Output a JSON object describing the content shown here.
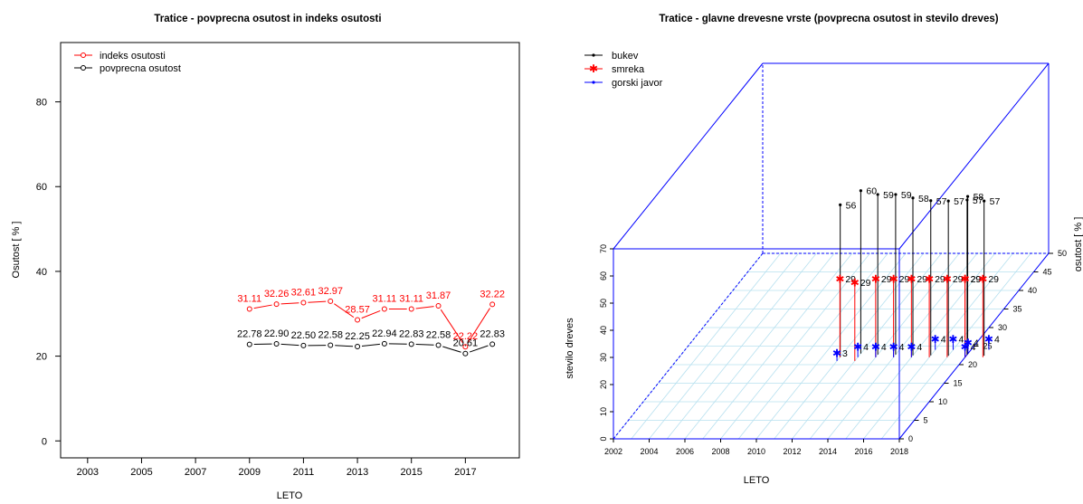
{
  "chart_data": [
    {
      "type": "line",
      "title": "Tratice - povprecna osutost in indeks osutosti",
      "xlabel": "LETO",
      "ylabel": "Osutost [ % ]",
      "xlim": [
        2002,
        2019
      ],
      "ylim": [
        -4,
        94
      ],
      "x_ticks": [
        2003,
        2005,
        2007,
        2009,
        2011,
        2013,
        2015,
        2017
      ],
      "y_ticks": [
        0,
        20,
        40,
        60,
        80
      ],
      "legend_position": "top-left",
      "x": [
        2009,
        2010,
        2011,
        2012,
        2013,
        2014,
        2015,
        2016,
        2017,
        2018
      ],
      "series": [
        {
          "name": "indeks osutosti",
          "color": "#ff0000",
          "values": [
            31.11,
            32.26,
            32.61,
            32.97,
            28.57,
            31.11,
            31.11,
            31.87,
            22.22,
            32.22
          ],
          "labels": [
            "31.11",
            "32.26",
            "32.61",
            "32.97",
            "28.57",
            "31.11",
            "31.11",
            "31.87",
            "22.22",
            "32.22"
          ]
        },
        {
          "name": "povprecna osutost",
          "color": "#000000",
          "values": [
            22.78,
            22.9,
            22.5,
            22.58,
            22.25,
            22.94,
            22.83,
            22.58,
            20.61,
            22.83
          ],
          "labels": [
            "22.78",
            "22.90",
            "22.50",
            "22.58",
            "22.25",
            "22.94",
            "22.83",
            "22.58",
            "20.61",
            "22.83"
          ]
        }
      ]
    },
    {
      "type": "scatter",
      "title": "Tratice - glavne drevesne vrste (povprecna osutost in stevilo dreves)",
      "xlabel": "LETO",
      "ylabel": "osutost [ % ]",
      "zlabel": "stevilo dreves",
      "xlim": [
        2002,
        2018
      ],
      "ylim": [
        0,
        50
      ],
      "zlim": [
        0,
        70
      ],
      "x_ticks": [
        2002,
        2004,
        2006,
        2008,
        2010,
        2012,
        2014,
        2016,
        2018
      ],
      "y_ticks": [
        0,
        5,
        10,
        15,
        20,
        25,
        30,
        35,
        40,
        45,
        50
      ],
      "z_ticks": [
        0,
        10,
        20,
        30,
        40,
        50,
        60,
        70
      ],
      "grid": true,
      "legend_position": "top-left",
      "series": [
        {
          "name": "bukev",
          "color": "#000000",
          "x": [
            2011,
            2012,
            2013,
            2014,
            2015,
            2016,
            2017,
            2018,
            2018,
            2019
          ],
          "y": [
            22.1,
            23.0,
            22.7,
            22.7,
            22.5,
            22.5,
            22.4,
            22.9,
            22.7,
            22.4
          ],
          "z": [
            56,
            60,
            59,
            59,
            58,
            57,
            57,
            58,
            57,
            57
          ]
        },
        {
          "name": "smreka",
          "color": "#ff0000",
          "x": [
            2011,
            2012,
            2013,
            2014,
            2015,
            2016,
            2017,
            2018,
            2018,
            2019
          ],
          "y": [
            22,
            21,
            22,
            22,
            22,
            22,
            22,
            22,
            22,
            22
          ],
          "z": [
            29,
            29,
            29,
            29,
            29,
            29,
            29,
            29,
            29,
            29
          ]
        },
        {
          "name": "gorski javor",
          "color": "#0000ff",
          "x": [
            2011,
            2012,
            2013,
            2014,
            2015,
            2016,
            2017,
            2018,
            2018,
            2019
          ],
          "y": [
            21,
            22,
            22,
            22,
            22,
            24,
            24,
            22,
            23,
            24
          ],
          "z": [
            3,
            4,
            4,
            4,
            4,
            4,
            4,
            4,
            4,
            4
          ]
        }
      ]
    }
  ]
}
